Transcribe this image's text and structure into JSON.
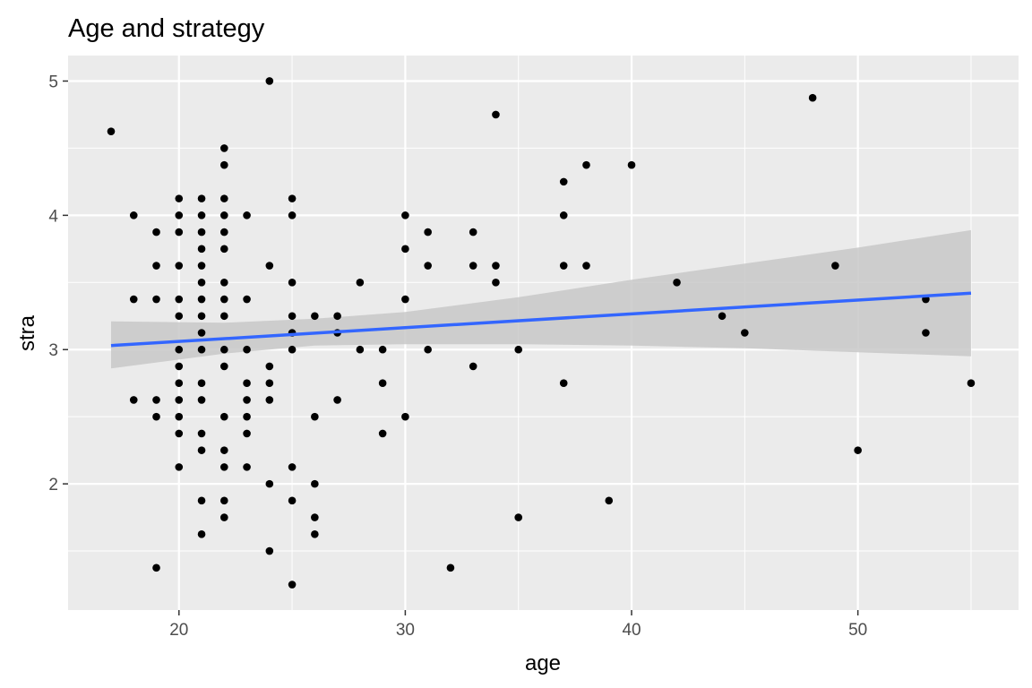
{
  "chart_data": {
    "type": "scatter",
    "title": "Age and strategy",
    "xlabel": "age",
    "ylabel": "stra",
    "xlim": [
      15.1,
      57.1
    ],
    "ylim": [
      1.06,
      5.19
    ],
    "xticks": [
      20,
      30,
      40,
      50
    ],
    "xtick_labels": [
      "20",
      "30",
      "40",
      "50"
    ],
    "yticks": [
      2,
      3,
      4,
      5
    ],
    "ytick_labels": [
      "2",
      "3",
      "4",
      "5"
    ],
    "grid": true,
    "legend": "none",
    "colors": {
      "panel": "#ebebeb",
      "grid": "#ffffff",
      "point": "#000000",
      "line": "#3366ff",
      "band": "#c8c8c8"
    },
    "points": [
      [
        17,
        4.625
      ],
      [
        18,
        4
      ],
      [
        18,
        3.375
      ],
      [
        18,
        2.625
      ],
      [
        19,
        3.875
      ],
      [
        19,
        3.625
      ],
      [
        19,
        3.375
      ],
      [
        19,
        2.625
      ],
      [
        19,
        2.5
      ],
      [
        19,
        1.375
      ],
      [
        20,
        4.125
      ],
      [
        20,
        4
      ],
      [
        20,
        3.875
      ],
      [
        20,
        3.625
      ],
      [
        20,
        3.375
      ],
      [
        20,
        3.25
      ],
      [
        20,
        3
      ],
      [
        20,
        2.875
      ],
      [
        20,
        2.75
      ],
      [
        20,
        2.625
      ],
      [
        20,
        2.5
      ],
      [
        20,
        2.375
      ],
      [
        20,
        2.125
      ],
      [
        21,
        4.125
      ],
      [
        21,
        4
      ],
      [
        21,
        3.875
      ],
      [
        21,
        3.75
      ],
      [
        21,
        3.625
      ],
      [
        21,
        3.5
      ],
      [
        21,
        3.375
      ],
      [
        21,
        3.25
      ],
      [
        21,
        3.125
      ],
      [
        21,
        3
      ],
      [
        21,
        2.75
      ],
      [
        21,
        2.625
      ],
      [
        21,
        2.375
      ],
      [
        21,
        2.25
      ],
      [
        21,
        1.875
      ],
      [
        21,
        1.625
      ],
      [
        22,
        4.5
      ],
      [
        22,
        4.375
      ],
      [
        22,
        4.125
      ],
      [
        22,
        4
      ],
      [
        22,
        3.875
      ],
      [
        22,
        3.75
      ],
      [
        22,
        3.5
      ],
      [
        22,
        3.375
      ],
      [
        22,
        3.25
      ],
      [
        22,
        3
      ],
      [
        22,
        2.875
      ],
      [
        22,
        2.5
      ],
      [
        22,
        2.25
      ],
      [
        22,
        2.125
      ],
      [
        22,
        1.875
      ],
      [
        22,
        1.75
      ],
      [
        23,
        4
      ],
      [
        23,
        3.375
      ],
      [
        23,
        3
      ],
      [
        23,
        2.75
      ],
      [
        23,
        2.625
      ],
      [
        23,
        2.5
      ],
      [
        23,
        2.375
      ],
      [
        23,
        2.125
      ],
      [
        24,
        5
      ],
      [
        24,
        3.625
      ],
      [
        24,
        2.875
      ],
      [
        24,
        2.75
      ],
      [
        24,
        2.625
      ],
      [
        24,
        2
      ],
      [
        24,
        1.5
      ],
      [
        25,
        4.125
      ],
      [
        25,
        4
      ],
      [
        25,
        3.5
      ],
      [
        25,
        3.25
      ],
      [
        25,
        3.125
      ],
      [
        25,
        3
      ],
      [
        25,
        2.125
      ],
      [
        25,
        1.875
      ],
      [
        25,
        1.25
      ],
      [
        26,
        3.25
      ],
      [
        26,
        2.5
      ],
      [
        26,
        2
      ],
      [
        26,
        1.75
      ],
      [
        26,
        1.625
      ],
      [
        27,
        3.25
      ],
      [
        27,
        3.125
      ],
      [
        27,
        2.625
      ],
      [
        28,
        3.5
      ],
      [
        28,
        3
      ],
      [
        29,
        3
      ],
      [
        29,
        2.75
      ],
      [
        29,
        2.375
      ],
      [
        30,
        4
      ],
      [
        30,
        3.75
      ],
      [
        30,
        3.375
      ],
      [
        30,
        2.5
      ],
      [
        31,
        3.875
      ],
      [
        31,
        3.625
      ],
      [
        31,
        3
      ],
      [
        32,
        1.375
      ],
      [
        33,
        3.875
      ],
      [
        33,
        3.625
      ],
      [
        33,
        2.875
      ],
      [
        34,
        4.75
      ],
      [
        34,
        3.625
      ],
      [
        34,
        3.5
      ],
      [
        35,
        3
      ],
      [
        35,
        1.75
      ],
      [
        37,
        4.25
      ],
      [
        37,
        4
      ],
      [
        37,
        3.625
      ],
      [
        37,
        2.75
      ],
      [
        38,
        4.375
      ],
      [
        38,
        3.625
      ],
      [
        39,
        1.875
      ],
      [
        40,
        4.375
      ],
      [
        42,
        3.5
      ],
      [
        44,
        3.25
      ],
      [
        45,
        3.125
      ],
      [
        48,
        4.875
      ],
      [
        49,
        3.625
      ],
      [
        50,
        2.25
      ],
      [
        53,
        3.375
      ],
      [
        53,
        3.125
      ],
      [
        55,
        2.75
      ]
    ],
    "fit_line": {
      "x": [
        17,
        55
      ],
      "y": [
        3.03,
        3.42
      ]
    },
    "confidence_band": {
      "x": [
        17,
        22,
        26,
        30,
        35,
        40,
        45,
        50,
        55
      ],
      "upper": [
        3.21,
        3.2,
        3.23,
        3.28,
        3.39,
        3.52,
        3.64,
        3.76,
        3.89
      ],
      "lower": [
        2.86,
        2.97,
        3.03,
        3.04,
        3.04,
        3.03,
        3.01,
        2.98,
        2.95
      ]
    }
  }
}
